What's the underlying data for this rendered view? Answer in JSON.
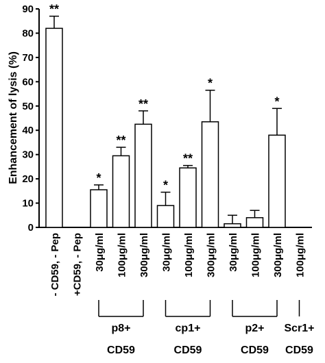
{
  "chart_data": {
    "type": "bar",
    "y_label": "Enhancement of lysis (%)",
    "categories": [
      "- CD59, - Pep",
      "+CD59, - Pep",
      "30μg/ml",
      "100μg/ml",
      "300μg/ml",
      "30μg/ml",
      "100μg/ml",
      "300μg/ml",
      "30μg/ml",
      "100μg/ml",
      "300μg/ml",
      "100μg/ml"
    ],
    "values": [
      82,
      0,
      15.5,
      29.5,
      42.5,
      9,
      24.5,
      43.5,
      1.5,
      4,
      38,
      0
    ],
    "errors": [
      5,
      0,
      2,
      3.5,
      5.5,
      5.5,
      1,
      13,
      3.5,
      3,
      11,
      0
    ],
    "annotations": [
      "**",
      null,
      "*",
      "**",
      "**",
      "*",
      "**",
      "*",
      null,
      null,
      "*",
      null
    ],
    "groups": [
      {
        "lines": [
          "p8+",
          "CD59"
        ],
        "categories": [
          2,
          3,
          4
        ]
      },
      {
        "lines": [
          "cp1+",
          "CD59"
        ],
        "categories": [
          5,
          6,
          7
        ]
      },
      {
        "lines": [
          "p2+",
          "CD59"
        ],
        "categories": [
          8,
          9,
          10
        ]
      },
      {
        "lines": [
          "Scr1+",
          "CD59"
        ],
        "categories": [
          11
        ]
      }
    ],
    "color": "#ffffff",
    "ylim": [
      0,
      90
    ],
    "yticks": [
      0,
      10,
      20,
      30,
      40,
      50,
      60,
      70,
      80,
      90
    ]
  }
}
